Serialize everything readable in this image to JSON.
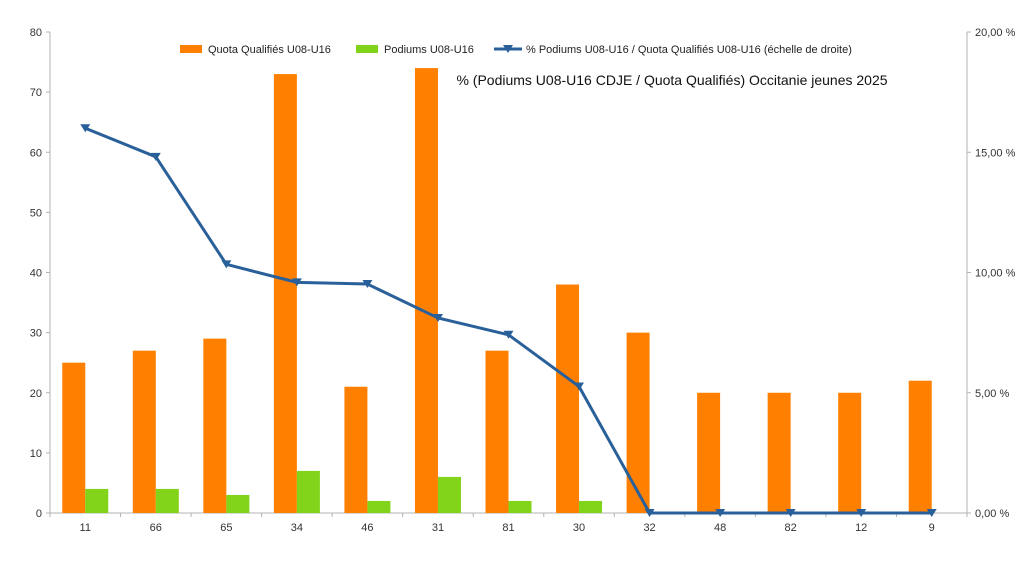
{
  "chart_data": {
    "type": "bar",
    "title": "% (Podiums U08-U16 CDJE / Quota Qualifiés) Occitanie jeunes 2025",
    "categories": [
      "11",
      "66",
      "65",
      "34",
      "46",
      "31",
      "81",
      "30",
      "32",
      "48",
      "82",
      "12",
      "9"
    ],
    "series": [
      {
        "name": "Quota Qualifiés U08-U16",
        "type": "bar",
        "axis": "left",
        "color": "#ff8000",
        "values": [
          25,
          27,
          29,
          73,
          21,
          74,
          27,
          38,
          30,
          20,
          20,
          20,
          22
        ]
      },
      {
        "name": "Podiums U08-U16",
        "type": "bar",
        "axis": "left",
        "color": "#81d41a",
        "values": [
          4,
          4,
          3,
          7,
          2,
          6,
          2,
          2,
          0,
          0,
          0,
          0,
          0
        ]
      },
      {
        "name": "% Podiums U08-U16 / Quota Qualifiés U08-U16 (échelle de droite)",
        "type": "line",
        "axis": "right",
        "color": "#2a6099",
        "values": [
          16.0,
          14.81,
          10.34,
          9.59,
          9.52,
          8.11,
          7.41,
          5.26,
          0,
          0,
          0,
          0,
          0
        ]
      }
    ],
    "y_left": {
      "ylim": [
        0,
        80
      ],
      "ticks": [
        "0",
        "10",
        "20",
        "30",
        "40",
        "50",
        "60",
        "70",
        "80"
      ]
    },
    "y_right": {
      "ylim": [
        0,
        20
      ],
      "ticks": [
        "0,00 %",
        "5,00 %",
        "10,00 %",
        "15,00 %",
        "20,00 %"
      ]
    },
    "grid": false,
    "legend": "top"
  }
}
